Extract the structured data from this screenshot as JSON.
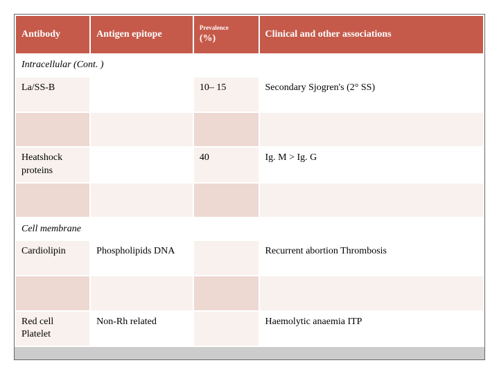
{
  "colors": {
    "header_bg": "#c55a4a",
    "header_fg": "#ffffff",
    "row_light_odd": "#f8f1ed",
    "row_light_even": "#ffffff",
    "row_dark_odd": "#eed8d2",
    "row_dark_even": "#f8f1ed",
    "footer": "#cccccc",
    "border": "#ffffff"
  },
  "columns": {
    "c1": "Antibody",
    "c2": "Antigen epitope",
    "c3_small": "Prevalence",
    "c3_main": "(%)",
    "c4": "Clinical and other associations"
  },
  "sections": [
    {
      "title": "Intracellular (Cont. )",
      "rows": [
        {
          "antibody": "La/SS-B",
          "epitope": "",
          "prevalence": "10– 15",
          "assoc": "Secondary Sjogren's (2° SS)"
        },
        {
          "antibody": "",
          "epitope": "",
          "prevalence": "",
          "assoc": ""
        },
        {
          "antibody": "Heatshock proteins",
          "epitope": "",
          "prevalence": "40",
          "assoc": "Ig. M > Ig. G"
        },
        {
          "antibody": "",
          "epitope": "",
          "prevalence": "",
          "assoc": ""
        }
      ]
    },
    {
      "title": "Cell membrane",
      "rows": [
        {
          "antibody": "Cardiolipin",
          "epitope": "Phospholipids DNA",
          "prevalence": "",
          "assoc": "Recurrent abortion Thrombosis"
        },
        {
          "antibody": "",
          "epitope": "",
          "prevalence": "",
          "assoc": ""
        },
        {
          "antibody": "Red cell Platelet",
          "epitope": "Non-Rh related",
          "prevalence": "",
          "assoc": "Haemolytic anaemia ITP"
        }
      ]
    }
  ]
}
